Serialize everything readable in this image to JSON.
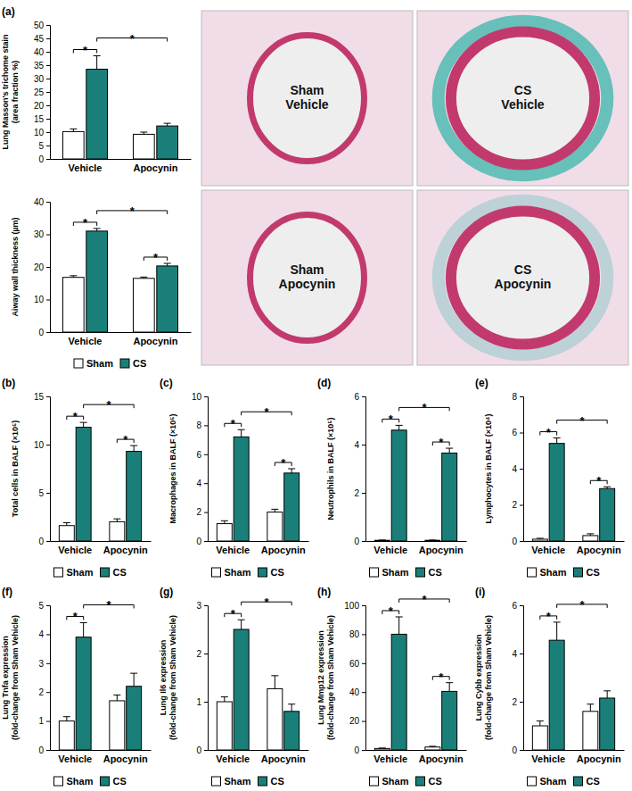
{
  "chart_data": [
    {
      "type": "bar",
      "panel": "(a)",
      "ylabel": [
        "Lung Masson's trichome stain",
        "(area fraction %)"
      ],
      "categories": [
        "Vehicle",
        "Apocynin"
      ],
      "series": [
        {
          "name": "Sham",
          "color": "#ffffff",
          "values": [
            10.2,
            9.2
          ],
          "errors": [
            1.0,
            0.8
          ]
        },
        {
          "name": "CS",
          "color": "#1b7f79",
          "values": [
            33.5,
            12.3
          ],
          "errors": [
            5.0,
            1.0
          ]
        }
      ],
      "ylim": [
        0,
        50
      ],
      "yticks": [
        0,
        5,
        10,
        15,
        20,
        25,
        30,
        35,
        40,
        45,
        50
      ],
      "annotations": [
        {
          "bars": [
            [
              0,
              0
            ],
            [
              1,
              0
            ]
          ],
          "text": "*"
        },
        {
          "bars": [
            [
              1,
              0
            ],
            [
              1,
              1
            ]
          ],
          "text": "*"
        }
      ]
    },
    {
      "type": "bar",
      "ylabel": [
        "Aiway wall thickness (µm)"
      ],
      "categories": [
        "Vehicle",
        "Apocynin"
      ],
      "series": [
        {
          "name": "Sham",
          "color": "#ffffff",
          "values": [
            16.8,
            16.5
          ],
          "errors": [
            0.5,
            0.4
          ]
        },
        {
          "name": "CS",
          "color": "#1b7f79",
          "values": [
            31.0,
            20.3
          ],
          "errors": [
            0.8,
            0.8
          ]
        }
      ],
      "ylim": [
        0,
        40
      ],
      "yticks": [
        0,
        10,
        20,
        30,
        40
      ],
      "legend": "bottom",
      "annotations": [
        {
          "bars": [
            [
              0,
              0
            ],
            [
              1,
              0
            ]
          ],
          "text": "*"
        },
        {
          "bars": [
            [
              0,
              1
            ],
            [
              1,
              1
            ]
          ],
          "text": "*"
        },
        {
          "bars": [
            [
              1,
              0
            ],
            [
              1,
              1
            ]
          ],
          "text": "*"
        }
      ]
    },
    {
      "type": "bar",
      "panel": "(b)",
      "ylabel": [
        "Total cells in BALF (×10⁵)"
      ],
      "categories": [
        "Vehicle",
        "Apocynin"
      ],
      "series": [
        {
          "name": "Sham",
          "color": "#ffffff",
          "values": [
            1.6,
            2.0
          ],
          "errors": [
            0.3,
            0.3
          ]
        },
        {
          "name": "CS",
          "color": "#1b7f79",
          "values": [
            11.8,
            9.3
          ],
          "errors": [
            0.5,
            0.6
          ]
        }
      ],
      "ylim": [
        0,
        15
      ],
      "yticks": [
        0,
        5,
        10,
        15
      ],
      "legend": "bottom",
      "annotations": [
        {
          "bars": [
            [
              0,
              0
            ],
            [
              1,
              0
            ]
          ],
          "text": "*"
        },
        {
          "bars": [
            [
              0,
              1
            ],
            [
              1,
              1
            ]
          ],
          "text": "*"
        },
        {
          "bars": [
            [
              1,
              0
            ],
            [
              1,
              1
            ]
          ],
          "text": "*"
        }
      ]
    },
    {
      "type": "bar",
      "panel": "(c)",
      "ylabel": [
        "Macrophages in BALF (×10⁵)"
      ],
      "categories": [
        "Vehicle",
        "Apocynin"
      ],
      "series": [
        {
          "name": "Sham",
          "color": "#ffffff",
          "values": [
            1.2,
            2.0
          ],
          "errors": [
            0.2,
            0.2
          ]
        },
        {
          "name": "CS",
          "color": "#1b7f79",
          "values": [
            7.2,
            4.7
          ],
          "errors": [
            0.5,
            0.3
          ]
        }
      ],
      "ylim": [
        0,
        10
      ],
      "yticks": [
        0,
        2,
        4,
        6,
        8,
        10
      ],
      "legend": "bottom",
      "annotations": [
        {
          "bars": [
            [
              0,
              0
            ],
            [
              1,
              0
            ]
          ],
          "text": "*"
        },
        {
          "bars": [
            [
              0,
              1
            ],
            [
              1,
              1
            ]
          ],
          "text": "*"
        },
        {
          "bars": [
            [
              1,
              0
            ],
            [
              1,
              1
            ]
          ],
          "text": "*"
        }
      ]
    },
    {
      "type": "bar",
      "panel": "(d)",
      "ylabel": [
        "Neutrophils in BALF (×10⁵)"
      ],
      "categories": [
        "Vehicle",
        "Apocynin"
      ],
      "series": [
        {
          "name": "Sham",
          "color": "#ffffff",
          "values": [
            0.03,
            0.03
          ],
          "errors": [
            0.01,
            0.01
          ]
        },
        {
          "name": "CS",
          "color": "#1b7f79",
          "values": [
            4.6,
            3.65
          ],
          "errors": [
            0.2,
            0.2
          ]
        }
      ],
      "ylim": [
        0,
        6
      ],
      "yticks": [
        0,
        2,
        4,
        6
      ],
      "legend": "bottom",
      "annotations": [
        {
          "bars": [
            [
              0,
              0
            ],
            [
              1,
              0
            ]
          ],
          "text": "*"
        },
        {
          "bars": [
            [
              0,
              1
            ],
            [
              1,
              1
            ]
          ],
          "text": "*"
        },
        {
          "bars": [
            [
              1,
              0
            ],
            [
              1,
              1
            ]
          ],
          "text": "*"
        }
      ]
    },
    {
      "type": "bar",
      "panel": "(e)",
      "ylabel": [
        "Lymphocytes in BALF (×10⁴)"
      ],
      "categories": [
        "Vehicle",
        "Apocynin"
      ],
      "series": [
        {
          "name": "Sham",
          "color": "#ffffff",
          "values": [
            0.1,
            0.3
          ],
          "errors": [
            0.05,
            0.1
          ]
        },
        {
          "name": "CS",
          "color": "#1b7f79",
          "values": [
            5.4,
            2.9
          ],
          "errors": [
            0.3,
            0.1
          ]
        }
      ],
      "ylim": [
        0,
        8
      ],
      "yticks": [
        0,
        2,
        4,
        6,
        8
      ],
      "legend": "bottom",
      "annotations": [
        {
          "bars": [
            [
              0,
              0
            ],
            [
              1,
              0
            ]
          ],
          "text": "*"
        },
        {
          "bars": [
            [
              0,
              1
            ],
            [
              1,
              1
            ]
          ],
          "text": "*"
        },
        {
          "bars": [
            [
              1,
              0
            ],
            [
              1,
              1
            ]
          ],
          "text": "*"
        }
      ]
    },
    {
      "type": "bar",
      "panel": "(f)",
      "ylabel": [
        "Lung Tnfa expression",
        "(fold-change from Sham Vehicle)"
      ],
      "categories": [
        "Vehicle",
        "Apocynin"
      ],
      "series": [
        {
          "name": "Sham",
          "color": "#ffffff",
          "values": [
            1.0,
            1.7
          ],
          "errors": [
            0.15,
            0.2
          ]
        },
        {
          "name": "CS",
          "color": "#1b7f79",
          "values": [
            3.9,
            2.2
          ],
          "errors": [
            0.5,
            0.45
          ]
        }
      ],
      "ylim": [
        0,
        5
      ],
      "yticks": [
        0,
        1,
        2,
        3,
        4,
        5
      ],
      "legend": "bottom",
      "annotations": [
        {
          "bars": [
            [
              0,
              0
            ],
            [
              1,
              0
            ]
          ],
          "text": "*"
        },
        {
          "bars": [
            [
              1,
              0
            ],
            [
              1,
              1
            ]
          ],
          "text": "*"
        }
      ]
    },
    {
      "type": "bar",
      "panel": "(g)",
      "ylabel": [
        "Lung Il6 expression",
        "(fold-change from Sham Vehicle)"
      ],
      "categories": [
        "Vehicle",
        "Apocynin"
      ],
      "series": [
        {
          "name": "Sham",
          "color": "#ffffff",
          "values": [
            1.0,
            1.27
          ],
          "errors": [
            0.1,
            0.27
          ]
        },
        {
          "name": "CS",
          "color": "#1b7f79",
          "values": [
            2.5,
            0.8
          ],
          "errors": [
            0.2,
            0.15
          ]
        }
      ],
      "ylim": [
        0,
        3
      ],
      "yticks": [
        0,
        1,
        2,
        3
      ],
      "legend": "bottom",
      "annotations": [
        {
          "bars": [
            [
              0,
              0
            ],
            [
              1,
              0
            ]
          ],
          "text": "*"
        },
        {
          "bars": [
            [
              1,
              0
            ],
            [
              1,
              1
            ]
          ],
          "text": "*"
        }
      ]
    },
    {
      "type": "bar",
      "panel": "(h)",
      "ylabel": [
        "Lung Mmp12 expression",
        "(fold-change from Sham Vehicle)"
      ],
      "categories": [
        "Vehicle",
        "Apocynin"
      ],
      "series": [
        {
          "name": "Sham",
          "color": "#ffffff",
          "values": [
            1.0,
            2.0
          ],
          "errors": [
            0.3,
            0.5
          ]
        },
        {
          "name": "CS",
          "color": "#1b7f79",
          "values": [
            80,
            40.5
          ],
          "errors": [
            12,
            6
          ]
        }
      ],
      "ylim": [
        0,
        100
      ],
      "yticks": [
        0,
        20,
        40,
        60,
        80,
        100
      ],
      "legend": "bottom",
      "annotations": [
        {
          "bars": [
            [
              0,
              0
            ],
            [
              1,
              0
            ]
          ],
          "text": "*"
        },
        {
          "bars": [
            [
              0,
              1
            ],
            [
              1,
              1
            ]
          ],
          "text": "*"
        },
        {
          "bars": [
            [
              1,
              0
            ],
            [
              1,
              1
            ]
          ],
          "text": "*"
        }
      ]
    },
    {
      "type": "bar",
      "panel": "(i)",
      "ylabel": [
        "Lung Cybb expression",
        "(fold-change from Sham Vehicle)"
      ],
      "categories": [
        "Vehicle",
        "Apocynin"
      ],
      "series": [
        {
          "name": "Sham",
          "color": "#ffffff",
          "values": [
            1.0,
            1.6
          ],
          "errors": [
            0.2,
            0.3
          ]
        },
        {
          "name": "CS",
          "color": "#1b7f79",
          "values": [
            4.55,
            2.15
          ],
          "errors": [
            0.75,
            0.3
          ]
        }
      ],
      "ylim": [
        0,
        6
      ],
      "yticks": [
        0,
        2,
        4,
        6
      ],
      "legend": "bottom",
      "annotations": [
        {
          "bars": [
            [
              0,
              0
            ],
            [
              1,
              0
            ]
          ],
          "text": "*"
        },
        {
          "bars": [
            [
              1,
              0
            ],
            [
              1,
              1
            ]
          ],
          "text": "*"
        }
      ]
    }
  ],
  "images": [
    {
      "label": [
        "Sham",
        "Vehicle"
      ]
    },
    {
      "label": [
        "CS",
        "Vehicle"
      ]
    },
    {
      "label": [
        "Sham",
        "Apocynin"
      ]
    },
    {
      "label": [
        "CS",
        "Apocynin"
      ]
    }
  ]
}
